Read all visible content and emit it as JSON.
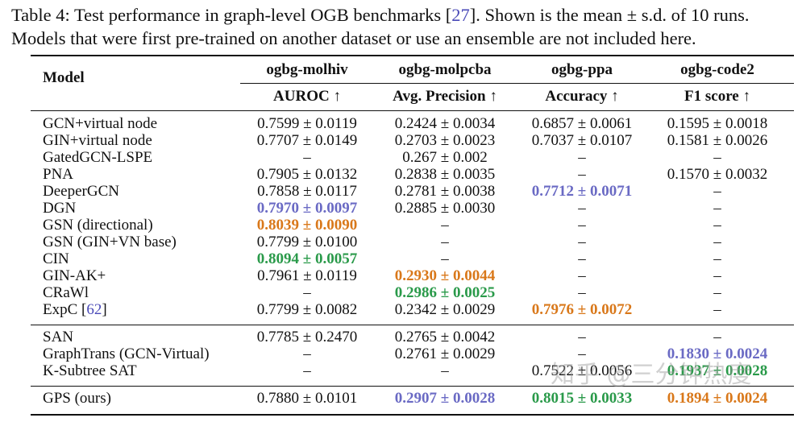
{
  "caption": {
    "line1_a": "Table 4: Test performance in graph-level OGB benchmarks [",
    "line1_ref": "27",
    "line1_b": "]. Shown is the mean ± s.d. of 10 runs.",
    "line2": "Models that were first pre-trained on another dataset or use an ensemble are not included here."
  },
  "header": {
    "model": "Model",
    "datasets": [
      "ogbg-molhiv",
      "ogbg-molpcba",
      "ogbg-ppa",
      "ogbg-code2"
    ],
    "metrics": [
      "AUROC ↑",
      "Avg. Precision ↑",
      "Accuracy ↑",
      "F1 score ↑"
    ]
  },
  "highlight_colors": {
    "first": "#2a9a4a",
    "second": "#d9781a",
    "third": "#6a6ac4"
  },
  "groups": [
    [
      {
        "model": "GCN+virtual node",
        "cells": [
          [
            "0.7599 ± 0.0119",
            ""
          ],
          [
            "0.2424 ± 0.0034",
            ""
          ],
          [
            "0.6857 ± 0.0061",
            ""
          ],
          [
            "0.1595 ± 0.0018",
            ""
          ]
        ]
      },
      {
        "model": "GIN+virtual node",
        "cells": [
          [
            "0.7707 ± 0.0149",
            ""
          ],
          [
            "0.2703 ± 0.0023",
            ""
          ],
          [
            "0.7037 ± 0.0107",
            ""
          ],
          [
            "0.1581 ± 0.0026",
            ""
          ]
        ]
      },
      {
        "model": "GatedGCN-LSPE",
        "cells": [
          [
            "–",
            ""
          ],
          [
            "0.267 ± 0.002",
            ""
          ],
          [
            "–",
            ""
          ],
          [
            "–",
            ""
          ]
        ]
      },
      {
        "model": "PNA",
        "cells": [
          [
            "0.7905 ± 0.0132",
            ""
          ],
          [
            "0.2838 ± 0.0035",
            ""
          ],
          [
            "–",
            ""
          ],
          [
            "0.1570 ± 0.0032",
            ""
          ]
        ]
      },
      {
        "model": "DeeperGCN",
        "cells": [
          [
            "0.7858 ± 0.0117",
            ""
          ],
          [
            "0.2781 ± 0.0038",
            ""
          ],
          [
            "0.7712 ± 0.0071",
            "third"
          ],
          [
            "–",
            ""
          ]
        ]
      },
      {
        "model": "DGN",
        "cells": [
          [
            "0.7970 ± 0.0097",
            "third"
          ],
          [
            "0.2885 ± 0.0030",
            ""
          ],
          [
            "–",
            ""
          ],
          [
            "–",
            ""
          ]
        ]
      },
      {
        "model": "GSN (directional)",
        "cells": [
          [
            "0.8039 ± 0.0090",
            "second"
          ],
          [
            "–",
            ""
          ],
          [
            "–",
            ""
          ],
          [
            "–",
            ""
          ]
        ]
      },
      {
        "model": "GSN (GIN+VN base)",
        "cells": [
          [
            "0.7799 ± 0.0100",
            ""
          ],
          [
            "–",
            ""
          ],
          [
            "–",
            ""
          ],
          [
            "–",
            ""
          ]
        ]
      },
      {
        "model": "CIN",
        "cells": [
          [
            "0.8094 ± 0.0057",
            "first"
          ],
          [
            "–",
            ""
          ],
          [
            "–",
            ""
          ],
          [
            "–",
            ""
          ]
        ]
      },
      {
        "model": "GIN-AK+",
        "cells": [
          [
            "0.7961 ± 0.0119",
            ""
          ],
          [
            "0.2930 ± 0.0044",
            "second"
          ],
          [
            "–",
            ""
          ],
          [
            "–",
            ""
          ]
        ]
      },
      {
        "model": "CRaWl",
        "cells": [
          [
            "–",
            ""
          ],
          [
            "0.2986 ± 0.0025",
            "first"
          ],
          [
            "–",
            ""
          ],
          [
            "–",
            ""
          ]
        ]
      },
      {
        "model": "ExpC",
        "ref": "62",
        "cells": [
          [
            "0.7799 ± 0.0082",
            ""
          ],
          [
            "0.2342 ± 0.0029",
            ""
          ],
          [
            "0.7976 ± 0.0072",
            "second"
          ],
          [
            "–",
            ""
          ]
        ]
      }
    ],
    [
      {
        "model": "SAN",
        "cells": [
          [
            "0.7785 ± 0.2470",
            ""
          ],
          [
            "0.2765 ± 0.0042",
            ""
          ],
          [
            "–",
            ""
          ],
          [
            "–",
            ""
          ]
        ]
      },
      {
        "model": "GraphTrans (GCN-Virtual)",
        "cells": [
          [
            "–",
            ""
          ],
          [
            "0.2761 ± 0.0029",
            ""
          ],
          [
            "–",
            ""
          ],
          [
            "0.1830 ± 0.0024",
            "third"
          ]
        ]
      },
      {
        "model": "K-Subtree SAT",
        "cells": [
          [
            "–",
            ""
          ],
          [
            "–",
            ""
          ],
          [
            "0.7522 ± 0.0056",
            ""
          ],
          [
            "0.1937 ± 0.0028",
            "first"
          ]
        ]
      }
    ],
    [
      {
        "model": "GPS (ours)",
        "cells": [
          [
            "0.7880 ± 0.0101",
            ""
          ],
          [
            "0.2907 ± 0.0028",
            "third"
          ],
          [
            "0.8015 ± 0.0033",
            "first"
          ],
          [
            "0.1894 ± 0.0024",
            "second"
          ]
        ]
      }
    ]
  ],
  "watermark": "知乎 @三分钟热度"
}
